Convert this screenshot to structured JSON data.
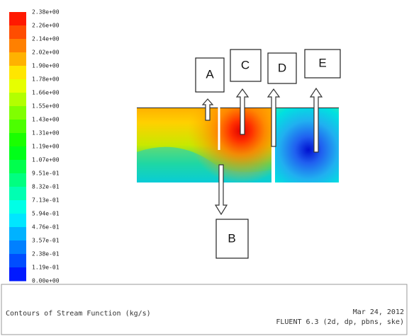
{
  "colorbar": {
    "labels": [
      "2.38e+00",
      "2.26e+00",
      "2.14e+00",
      "2.02e+00",
      "1.90e+00",
      "1.78e+00",
      "1.66e+00",
      "1.55e+00",
      "1.43e+00",
      "1.31e+00",
      "1.19e+00",
      "1.07e+00",
      "9.51e-01",
      "8.32e-01",
      "7.13e-01",
      "5.94e-01",
      "4.76e-01",
      "3.57e-01",
      "2.38e-01",
      "1.19e-01",
      "0.00e+00"
    ]
  },
  "boxes": {
    "a": "A",
    "b": "B",
    "c": "C",
    "d": "D",
    "e": "E"
  },
  "footer": {
    "title": "Contours of Stream Function (kg/s)",
    "date": "Mar 24, 2012",
    "solver": "FLUENT 6.3 (2d, dp, pbns, ske)"
  }
}
